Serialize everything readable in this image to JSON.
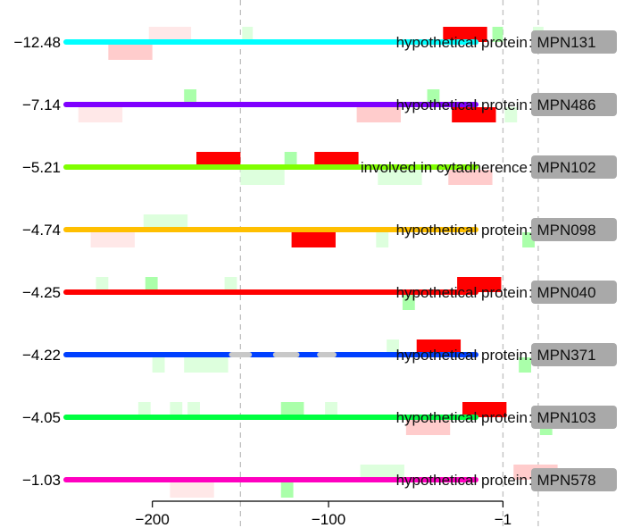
{
  "chart_data": {
    "type": "bar",
    "title": "",
    "xlabel": "",
    "ylabel": "",
    "xlim": [
      -250,
      15
    ],
    "x_ticks": [
      -200,
      -100,
      -1
    ],
    "x_tick_labels": [
      "−200",
      "−100",
      "−1"
    ],
    "reference_lines_x": [
      -150,
      -1,
      19
    ],
    "grid": false,
    "legend": "none",
    "colors": {
      "strong_motif": "#ff0000",
      "weak_motif_red": "#ffcccc",
      "faint_motif_red": "#ffe8e8",
      "weak_motif_green": "#aaffaa",
      "faint_motif_green": "#ddffdd",
      "label_box": "#a9a9a9",
      "reference_line": "#c0c0c0",
      "gap": "#c8c8c8"
    },
    "rows": [
      {
        "score": "−12.48",
        "description": "hypothetical protein",
        "gene": "MPN131",
        "line_color": "#00ffff",
        "motifs": [
          {
            "x0": -35,
            "x1": -10,
            "strength": "strong",
            "strand": "top"
          },
          {
            "x0": -7,
            "x1": -1,
            "strength": "medium",
            "strand": "top"
          },
          {
            "x0": -202,
            "x1": -178,
            "strength": "faint",
            "strand": "top"
          },
          {
            "x0": 16,
            "x1": 22,
            "strength": "faint",
            "strand": "top"
          },
          {
            "x0": -149,
            "x1": -143,
            "strength": "faint",
            "strand": "top"
          },
          {
            "x0": -225,
            "x1": -200,
            "strength": "weak",
            "strand": "bottom"
          }
        ]
      },
      {
        "score": "−7.14",
        "description": "hypothetical protein",
        "gene": "MPN486",
        "line_color": "#7f00ff",
        "motifs": [
          {
            "x0": -30,
            "x1": -5,
            "strength": "strong",
            "strand": "bottom"
          },
          {
            "x0": -84,
            "x1": -59,
            "strength": "weak",
            "strand": "bottom"
          },
          {
            "x0": -242,
            "x1": -217,
            "strength": "faint",
            "strand": "bottom"
          },
          {
            "x0": -182,
            "x1": -175,
            "strength": "medium",
            "strand": "top"
          },
          {
            "x0": -44,
            "x1": -37,
            "strength": "medium",
            "strand": "top"
          },
          {
            "x0": 0,
            "x1": 7,
            "strength": "faint",
            "strand": "bottom"
          }
        ]
      },
      {
        "score": "−5.21",
        "description": "involved in cytadherence",
        "gene": "MPN102",
        "line_color": "#80ff00",
        "motifs": [
          {
            "x0": -175,
            "x1": -150,
            "strength": "strong",
            "strand": "top"
          },
          {
            "x0": -108,
            "x1": -83,
            "strength": "strong",
            "strand": "top"
          },
          {
            "x0": -125,
            "x1": -118,
            "strength": "medium",
            "strand": "top"
          },
          {
            "x0": -72,
            "x1": -47,
            "strength": "faint",
            "strand": "bottom"
          },
          {
            "x0": -32,
            "x1": -7,
            "strength": "weak",
            "strand": "bottom"
          },
          {
            "x0": -150,
            "x1": -125,
            "strength": "faint",
            "strand": "bottom"
          }
        ]
      },
      {
        "score": "−4.74",
        "description": "hypothetical protein",
        "gene": "MPN098",
        "line_color": "#ffbf00",
        "motifs": [
          {
            "x0": -121,
            "x1": -96,
            "strength": "strong",
            "strand": "bottom"
          },
          {
            "x0": -205,
            "x1": -180,
            "strength": "faint",
            "strand": "top"
          },
          {
            "x0": -235,
            "x1": -210,
            "strength": "faint",
            "strand": "bottom"
          },
          {
            "x0": -73,
            "x1": -66,
            "strength": "faint",
            "strand": "bottom"
          },
          {
            "x0": 10,
            "x1": 17,
            "strength": "medium",
            "strand": "bottom"
          }
        ]
      },
      {
        "score": "−4.25",
        "description": "hypothetical protein",
        "gene": "MPN040",
        "line_color": "#ff0000",
        "motifs": [
          {
            "x0": -27,
            "x1": -2,
            "strength": "strong",
            "strand": "top"
          },
          {
            "x0": -232,
            "x1": -225,
            "strength": "faint",
            "strand": "top"
          },
          {
            "x0": -204,
            "x1": -197,
            "strength": "medium",
            "strand": "top"
          },
          {
            "x0": -159,
            "x1": -152,
            "strength": "faint",
            "strand": "top"
          },
          {
            "x0": -58,
            "x1": -51,
            "strength": "medium",
            "strand": "bottom"
          }
        ]
      },
      {
        "score": "−4.22",
        "description": "hypothetical protein",
        "gene": "MPN371",
        "line_color": "#0040ff",
        "gaps": [
          [
            -155,
            -145
          ],
          [
            -130,
            -118
          ],
          [
            -105,
            -97
          ]
        ],
        "motifs": [
          {
            "x0": -50,
            "x1": -25,
            "strength": "strong",
            "strand": "top"
          },
          {
            "x0": -67,
            "x1": -60,
            "strength": "faint",
            "strand": "top"
          },
          {
            "x0": -200,
            "x1": -193,
            "strength": "faint",
            "strand": "bottom"
          },
          {
            "x0": -182,
            "x1": -157,
            "strength": "faint",
            "strand": "bottom"
          },
          {
            "x0": 8,
            "x1": 15,
            "strength": "medium",
            "strand": "bottom"
          }
        ]
      },
      {
        "score": "−4.05",
        "description": "hypothetical protein",
        "gene": "MPN103",
        "line_color": "#00ff40",
        "motifs": [
          {
            "x0": -24,
            "x1": 1,
            "strength": "strong",
            "strand": "top"
          },
          {
            "x0": -56,
            "x1": -31,
            "strength": "weak",
            "strand": "bottom"
          },
          {
            "x0": -127,
            "x1": -114,
            "strength": "medium",
            "strand": "top"
          },
          {
            "x0": -102,
            "x1": -95,
            "strength": "faint",
            "strand": "top"
          },
          {
            "x0": -208,
            "x1": -201,
            "strength": "faint",
            "strand": "top"
          },
          {
            "x0": -190,
            "x1": -183,
            "strength": "faint",
            "strand": "top"
          },
          {
            "x0": -180,
            "x1": -173,
            "strength": "faint",
            "strand": "top"
          },
          {
            "x0": 20,
            "x1": 27,
            "strength": "medium",
            "strand": "bottom"
          }
        ]
      },
      {
        "score": "−1.03",
        "description": "hypothetical protein",
        "gene": "MPN578",
        "line_color": "#ff00c0",
        "motifs": [
          {
            "x0": 5,
            "x1": 30,
            "strength": "weak",
            "strand": "top"
          },
          {
            "x0": -82,
            "x1": -57,
            "strength": "faint",
            "strand": "top"
          },
          {
            "x0": -190,
            "x1": -165,
            "strength": "faint",
            "strand": "bottom"
          },
          {
            "x0": -127,
            "x1": -120,
            "strength": "medium",
            "strand": "bottom"
          }
        ]
      }
    ]
  }
}
